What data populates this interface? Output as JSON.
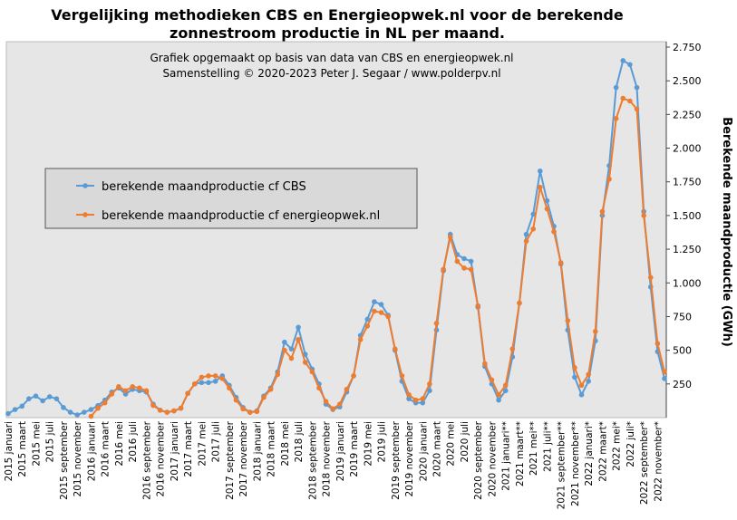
{
  "chart_data": {
    "type": "line",
    "title": [
      "Vergelijking  methodieken  CBS en Energieopwek.nl  voor de berekende",
      "zonnestroom productie in NL per maand."
    ],
    "subtitle": [
      "Grafiek  opgemaakt  op basis  van data van CBS  en energieopwek.nl",
      "Samenstelling  © 2020-2023  Peter J. Segaar / www.polderpv.nl"
    ],
    "y_label": "Berekende maandproductie (GWh)",
    "categories": [
      "2015 januari",
      null,
      "2015 maart",
      null,
      "2015 mei",
      null,
      "2015 juli",
      null,
      "2015 september",
      null,
      "2015 november",
      null,
      "2016 januari",
      null,
      "2016 maart",
      null,
      "2016 mei",
      null,
      "2016 juli",
      null,
      "2016 september",
      null,
      "2016 november",
      null,
      "2017 januari",
      null,
      "2017 maart",
      null,
      "2017 mei",
      null,
      "2017 juli",
      null,
      "2017 september",
      null,
      "2017 november",
      null,
      "2018 januari",
      null,
      "2018 maart",
      null,
      "2018 mei",
      null,
      "2018 juli",
      null,
      "2018 september",
      null,
      "2018 november",
      null,
      "2019 januari",
      null,
      "2019 maart",
      null,
      "2019 mei",
      null,
      "2019 juli",
      null,
      "2019 september",
      null,
      "2019 november",
      null,
      "2020 januari",
      null,
      "2020 maart",
      null,
      "2020 mei",
      null,
      "2020 juli",
      null,
      "2020 september",
      null,
      "2020 november",
      null,
      "2021 januari**",
      null,
      "2021 maart**",
      null,
      "2021 mei**",
      null,
      "2021 juli**",
      null,
      "2021 september**",
      null,
      "2021 november**",
      null,
      "2022 januari*",
      null,
      "2022 maart*",
      null,
      "2022 mei*",
      null,
      "2022 juli*",
      null,
      "2022 september*",
      null,
      "2022 november*",
      null
    ],
    "series": [
      {
        "name": "berekende maandproductie cf CBS",
        "color": "#5b9bd5",
        "values": [
          30,
          60,
          85,
          140,
          160,
          125,
          155,
          140,
          75,
          40,
          20,
          40,
          60,
          90,
          130,
          190,
          220,
          175,
          210,
          200,
          190,
          100,
          55,
          40,
          50,
          70,
          180,
          250,
          260,
          260,
          270,
          310,
          240,
          150,
          75,
          40,
          50,
          160,
          220,
          340,
          560,
          510,
          670,
          470,
          360,
          250,
          100,
          60,
          80,
          190,
          310,
          610,
          730,
          860,
          840,
          760,
          500,
          270,
          140,
          110,
          110,
          200,
          650,
          1090,
          1360,
          1210,
          1180,
          1160,
          820,
          380,
          250,
          130,
          200,
          450,
          850,
          1360,
          1510,
          1830,
          1610,
          1420,
          1140,
          650,
          300,
          170,
          270,
          570,
          1500,
          1870,
          2450,
          2650,
          2620,
          2450,
          1530,
          970,
          490,
          290
        ]
      },
      {
        "name": "berekende maandproductie cf energieopwek.nl",
        "color": "#ed7d31",
        "values": [
          null,
          null,
          null,
          null,
          null,
          null,
          null,
          null,
          null,
          null,
          null,
          null,
          10,
          70,
          110,
          175,
          230,
          200,
          230,
          220,
          200,
          90,
          55,
          40,
          50,
          70,
          180,
          250,
          300,
          310,
          310,
          290,
          220,
          130,
          65,
          40,
          45,
          150,
          210,
          320,
          500,
          440,
          580,
          410,
          340,
          220,
          120,
          65,
          100,
          210,
          310,
          580,
          680,
          790,
          780,
          750,
          510,
          310,
          170,
          130,
          140,
          250,
          700,
          1100,
          1340,
          1160,
          1110,
          1100,
          830,
          400,
          280,
          170,
          240,
          510,
          850,
          1310,
          1400,
          1710,
          1550,
          1380,
          1150,
          720,
          370,
          240,
          320,
          640,
          1530,
          1770,
          2220,
          2370,
          2350,
          2290,
          1500,
          1040,
          550,
          340
        ]
      }
    ],
    "ylim": [
      0,
      2750
    ],
    "yticks": [
      {
        "value": 250,
        "label": "250"
      },
      {
        "value": 500,
        "label": "500"
      },
      {
        "value": 750,
        "label": "750"
      },
      {
        "value": 1000,
        "label": "1.000"
      },
      {
        "value": 1250,
        "label": "1.250"
      },
      {
        "value": 1500,
        "label": "1.500"
      },
      {
        "value": 1750,
        "label": "1.750"
      },
      {
        "value": 2000,
        "label": "2.000"
      },
      {
        "value": 2250,
        "label": "2.250"
      },
      {
        "value": 2500,
        "label": "2.500"
      },
      {
        "value": 2750,
        "label": "2.750"
      }
    ],
    "grid": false
  }
}
